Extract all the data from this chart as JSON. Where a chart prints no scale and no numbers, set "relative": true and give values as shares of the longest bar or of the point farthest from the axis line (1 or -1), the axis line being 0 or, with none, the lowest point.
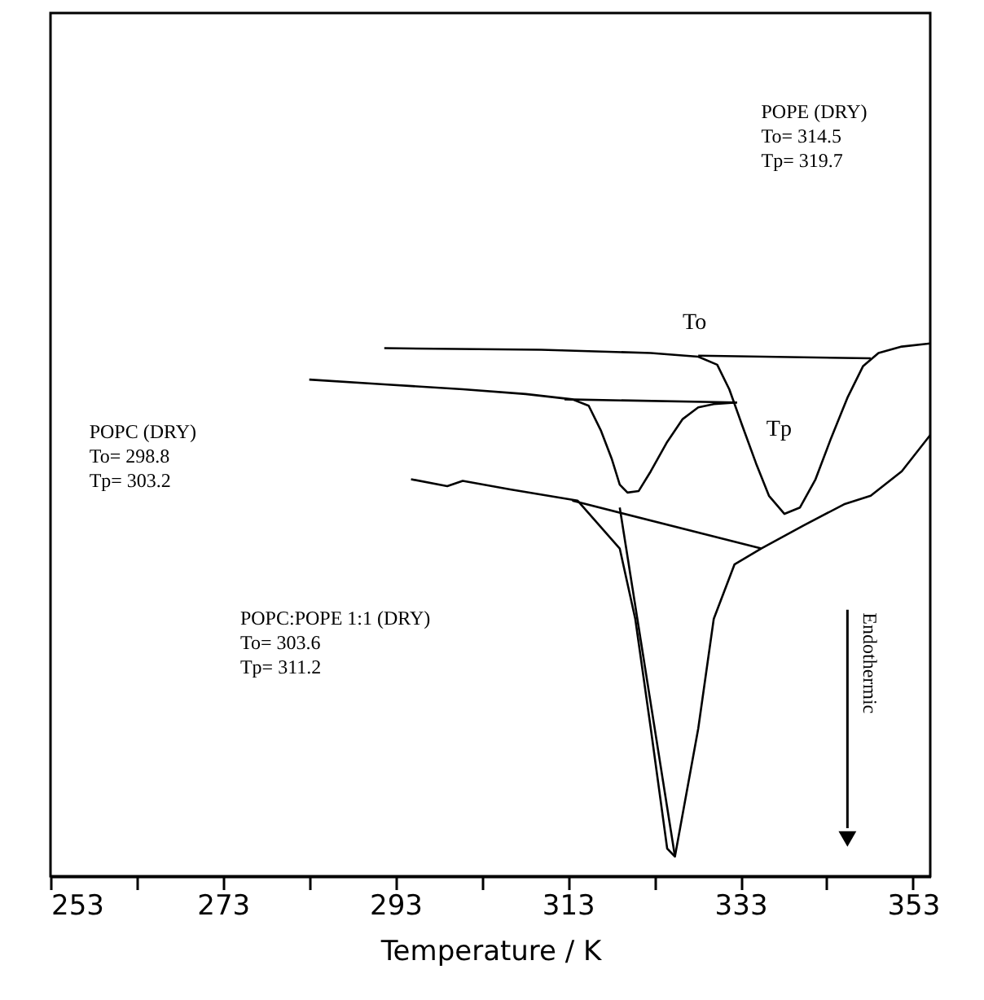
{
  "chart_data": {
    "type": "line",
    "relative": true,
    "xlabel": "Temperature / K",
    "xlim": [
      253,
      355
    ],
    "xticks": [
      253,
      {
        "value": 263,
        "label": null
      },
      273,
      {
        "value": 283,
        "label": null
      },
      293,
      {
        "value": 303,
        "label": null
      },
      313,
      {
        "value": 323,
        "label": null
      },
      333,
      {
        "value": 343,
        "label": null
      },
      353
    ],
    "grid": false,
    "marker": "none",
    "line_style": "solid",
    "series": [
      {
        "color": "#000000",
        "x": [
          291.7,
          309.9,
          322.6,
          328.1,
          330.3,
          331.7,
          333.2,
          334.8,
          336.3,
          338.1,
          339.9,
          341.7,
          343.5,
          345.4,
          347.2,
          349.0,
          351.7,
          355.0
        ],
        "values": [
          0.991,
          0.988,
          0.982,
          0.975,
          0.96,
          0.914,
          0.846,
          0.775,
          0.714,
          0.68,
          0.692,
          0.745,
          0.822,
          0.898,
          0.957,
          0.982,
          0.994,
          1.0
        ]
      },
      {
        "color": "#000000",
        "x": [
          283.0,
          291.7,
          300.8,
          308.1,
          313.5,
          315.4,
          316.8,
          318.1,
          319.0,
          319.9,
          321.2,
          322.6,
          324.5,
          326.3,
          328.1,
          329.9,
          332.6
        ],
        "values": [
          0.932,
          0.923,
          0.914,
          0.905,
          0.895,
          0.883,
          0.837,
          0.782,
          0.735,
          0.72,
          0.723,
          0.76,
          0.815,
          0.858,
          0.88,
          0.886,
          0.889
        ]
      },
      {
        "color": "#000000",
        "x": [
          294.8,
          299.0,
          300.8,
          306.3,
          314.1,
          319.0,
          320.8,
          322.6,
          324.5,
          325.4,
          328.1,
          329.9,
          332.3,
          335.4,
          340.3,
          345.0,
          348.1,
          351.7,
          355.0
        ],
        "values": [
          0.745,
          0.732,
          0.742,
          0.726,
          0.705,
          0.615,
          0.483,
          0.277,
          0.052,
          0.037,
          0.277,
          0.483,
          0.585,
          0.615,
          0.658,
          0.698,
          0.714,
          0.76,
          0.828
        ]
      },
      {
        "color": "#000000",
        "x": [
          328.1,
          348.1
        ],
        "values": [
          0.977,
          0.972
        ]
      },
      {
        "color": "#000000",
        "x": [
          312.6,
          332.6
        ],
        "values": [
          0.895,
          0.889
        ]
      },
      {
        "color": "#000000",
        "x": [
          313.5,
          335.4
        ],
        "values": [
          0.705,
          0.615
        ]
      },
      {
        "color": "#000000",
        "x": [
          319.0,
          325.4
        ],
        "values": [
          0.692,
          0.037
        ]
      }
    ],
    "annotations": [
      "POPE (DRY)\nTo= 314.5\nTp= 319.7",
      "POPC (DRY)\nTo= 298.8\nTp= 303.2",
      "POPC:POPE 1:1 (DRY)\nTo= 303.6\nTp= 311.2",
      "Endothermic",
      "To",
      "Tp"
    ]
  }
}
